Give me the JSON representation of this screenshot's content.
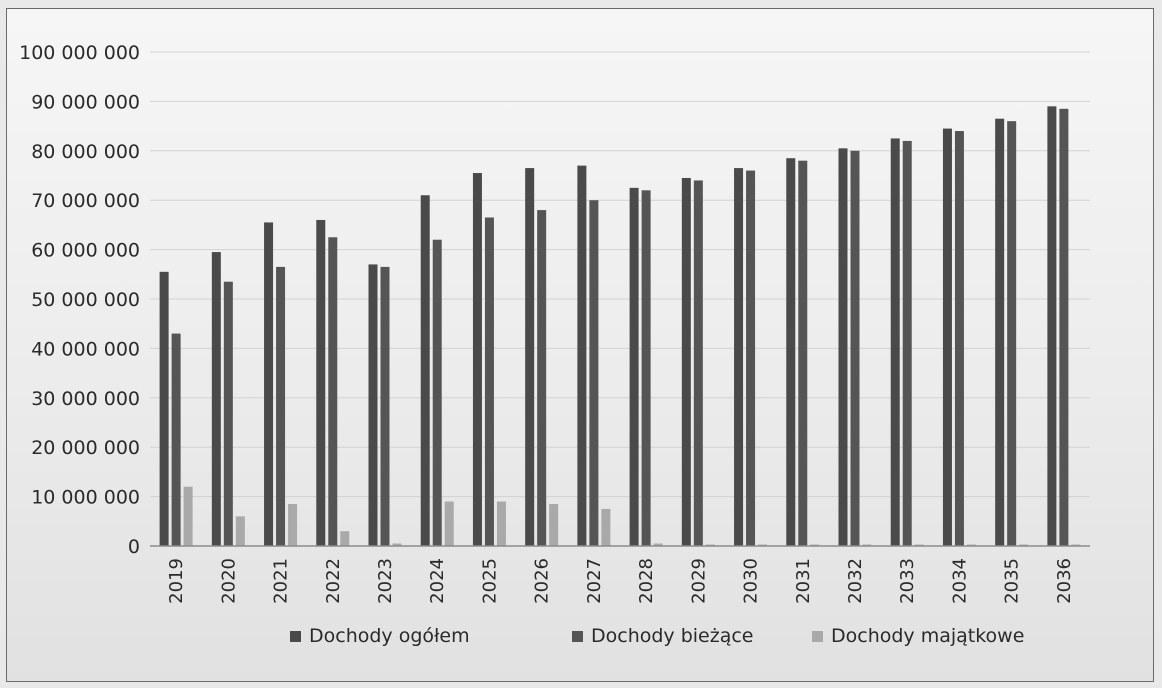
{
  "chart_data": {
    "type": "bar",
    "title": "",
    "xlabel": "",
    "ylabel": "",
    "ylim": [
      0,
      100000000
    ],
    "yticks": [
      0,
      10000000,
      20000000,
      30000000,
      40000000,
      50000000,
      60000000,
      70000000,
      80000000,
      90000000,
      100000000
    ],
    "ytick_labels": [
      "0",
      "10 000 000",
      "20 000 000",
      "30 000 000",
      "40 000 000",
      "50 000 000",
      "60 000 000",
      "70 000 000",
      "80 000 000",
      "90 000 000",
      "100 000 000"
    ],
    "grid": true,
    "legend_position": "bottom",
    "categories": [
      "2019",
      "2020",
      "2021",
      "2022",
      "2023",
      "2024",
      "2025",
      "2026",
      "2027",
      "2028",
      "2029",
      "2030",
      "2031",
      "2032",
      "2033",
      "2034",
      "2035",
      "2036"
    ],
    "series": [
      {
        "name": "Dochody ogółem",
        "color": "#4a4a4a",
        "values": [
          55500000,
          59500000,
          65500000,
          66000000,
          57000000,
          71000000,
          75500000,
          76500000,
          77000000,
          72500000,
          74500000,
          76500000,
          78500000,
          80500000,
          82500000,
          84500000,
          86500000,
          89000000
        ]
      },
      {
        "name": "Dochody bieżące",
        "color": "#555555",
        "values": [
          43000000,
          53500000,
          56500000,
          62500000,
          56500000,
          62000000,
          66500000,
          68000000,
          70000000,
          72000000,
          74000000,
          76000000,
          78000000,
          80000000,
          82000000,
          84000000,
          86000000,
          88500000
        ]
      },
      {
        "name": "Dochody majątkowe",
        "color": "#a9a9a9",
        "values": [
          12000000,
          6000000,
          8500000,
          3000000,
          500000,
          9000000,
          9000000,
          8500000,
          7500000,
          500000,
          300000,
          300000,
          300000,
          300000,
          300000,
          300000,
          300000,
          300000
        ]
      }
    ]
  }
}
